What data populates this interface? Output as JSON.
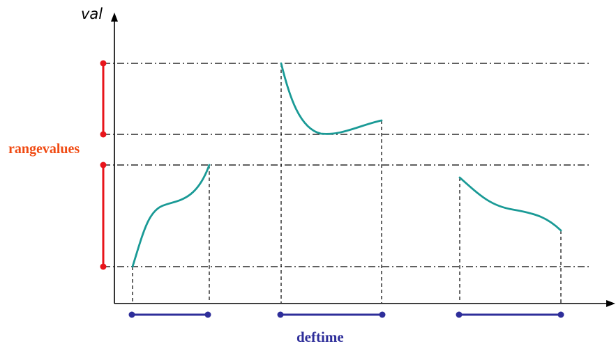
{
  "labels": {
    "y_axis": "val",
    "range": "rangevalues",
    "time": "deftime"
  },
  "colors": {
    "axis": "#000000",
    "curve": "#1a9a96",
    "range": "#e8151b",
    "range_label": "#f04a12",
    "time": "#2e2e9a"
  }
}
